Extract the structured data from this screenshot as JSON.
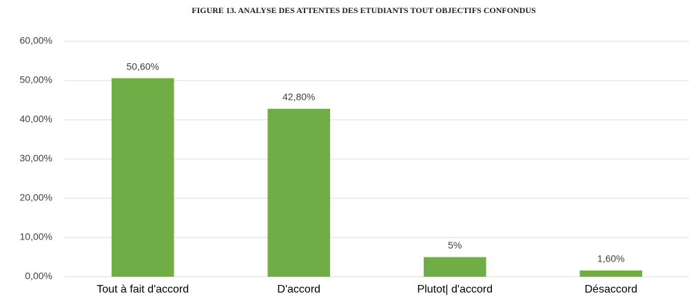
{
  "chart_data": {
    "type": "bar",
    "title": "FIGURE 13. ANALYSE DES ATTENTES DES ETUDIANTS TOUT OBJECTIFS CONFONDUS",
    "categories": [
      "Tout à fait d'accord",
      "D'accord",
      "Plutot| d'accord",
      "Désaccord"
    ],
    "values": [
      50.6,
      42.8,
      5,
      1.6
    ],
    "value_labels": [
      "50,60%",
      "42,80%",
      "5%",
      "1,60%"
    ],
    "color": "#70ad47",
    "ylim": [
      0,
      60
    ],
    "yticks": [
      {
        "value": 0,
        "label": "0,00%"
      },
      {
        "value": 10,
        "label": "10,00%"
      },
      {
        "value": 20,
        "label": "20,00%"
      },
      {
        "value": 30,
        "label": "30,00%"
      },
      {
        "value": 40,
        "label": "40,00%"
      },
      {
        "value": 50,
        "label": "50,00%"
      },
      {
        "value": 60,
        "label": "60,00%"
      }
    ],
    "grid": true
  }
}
